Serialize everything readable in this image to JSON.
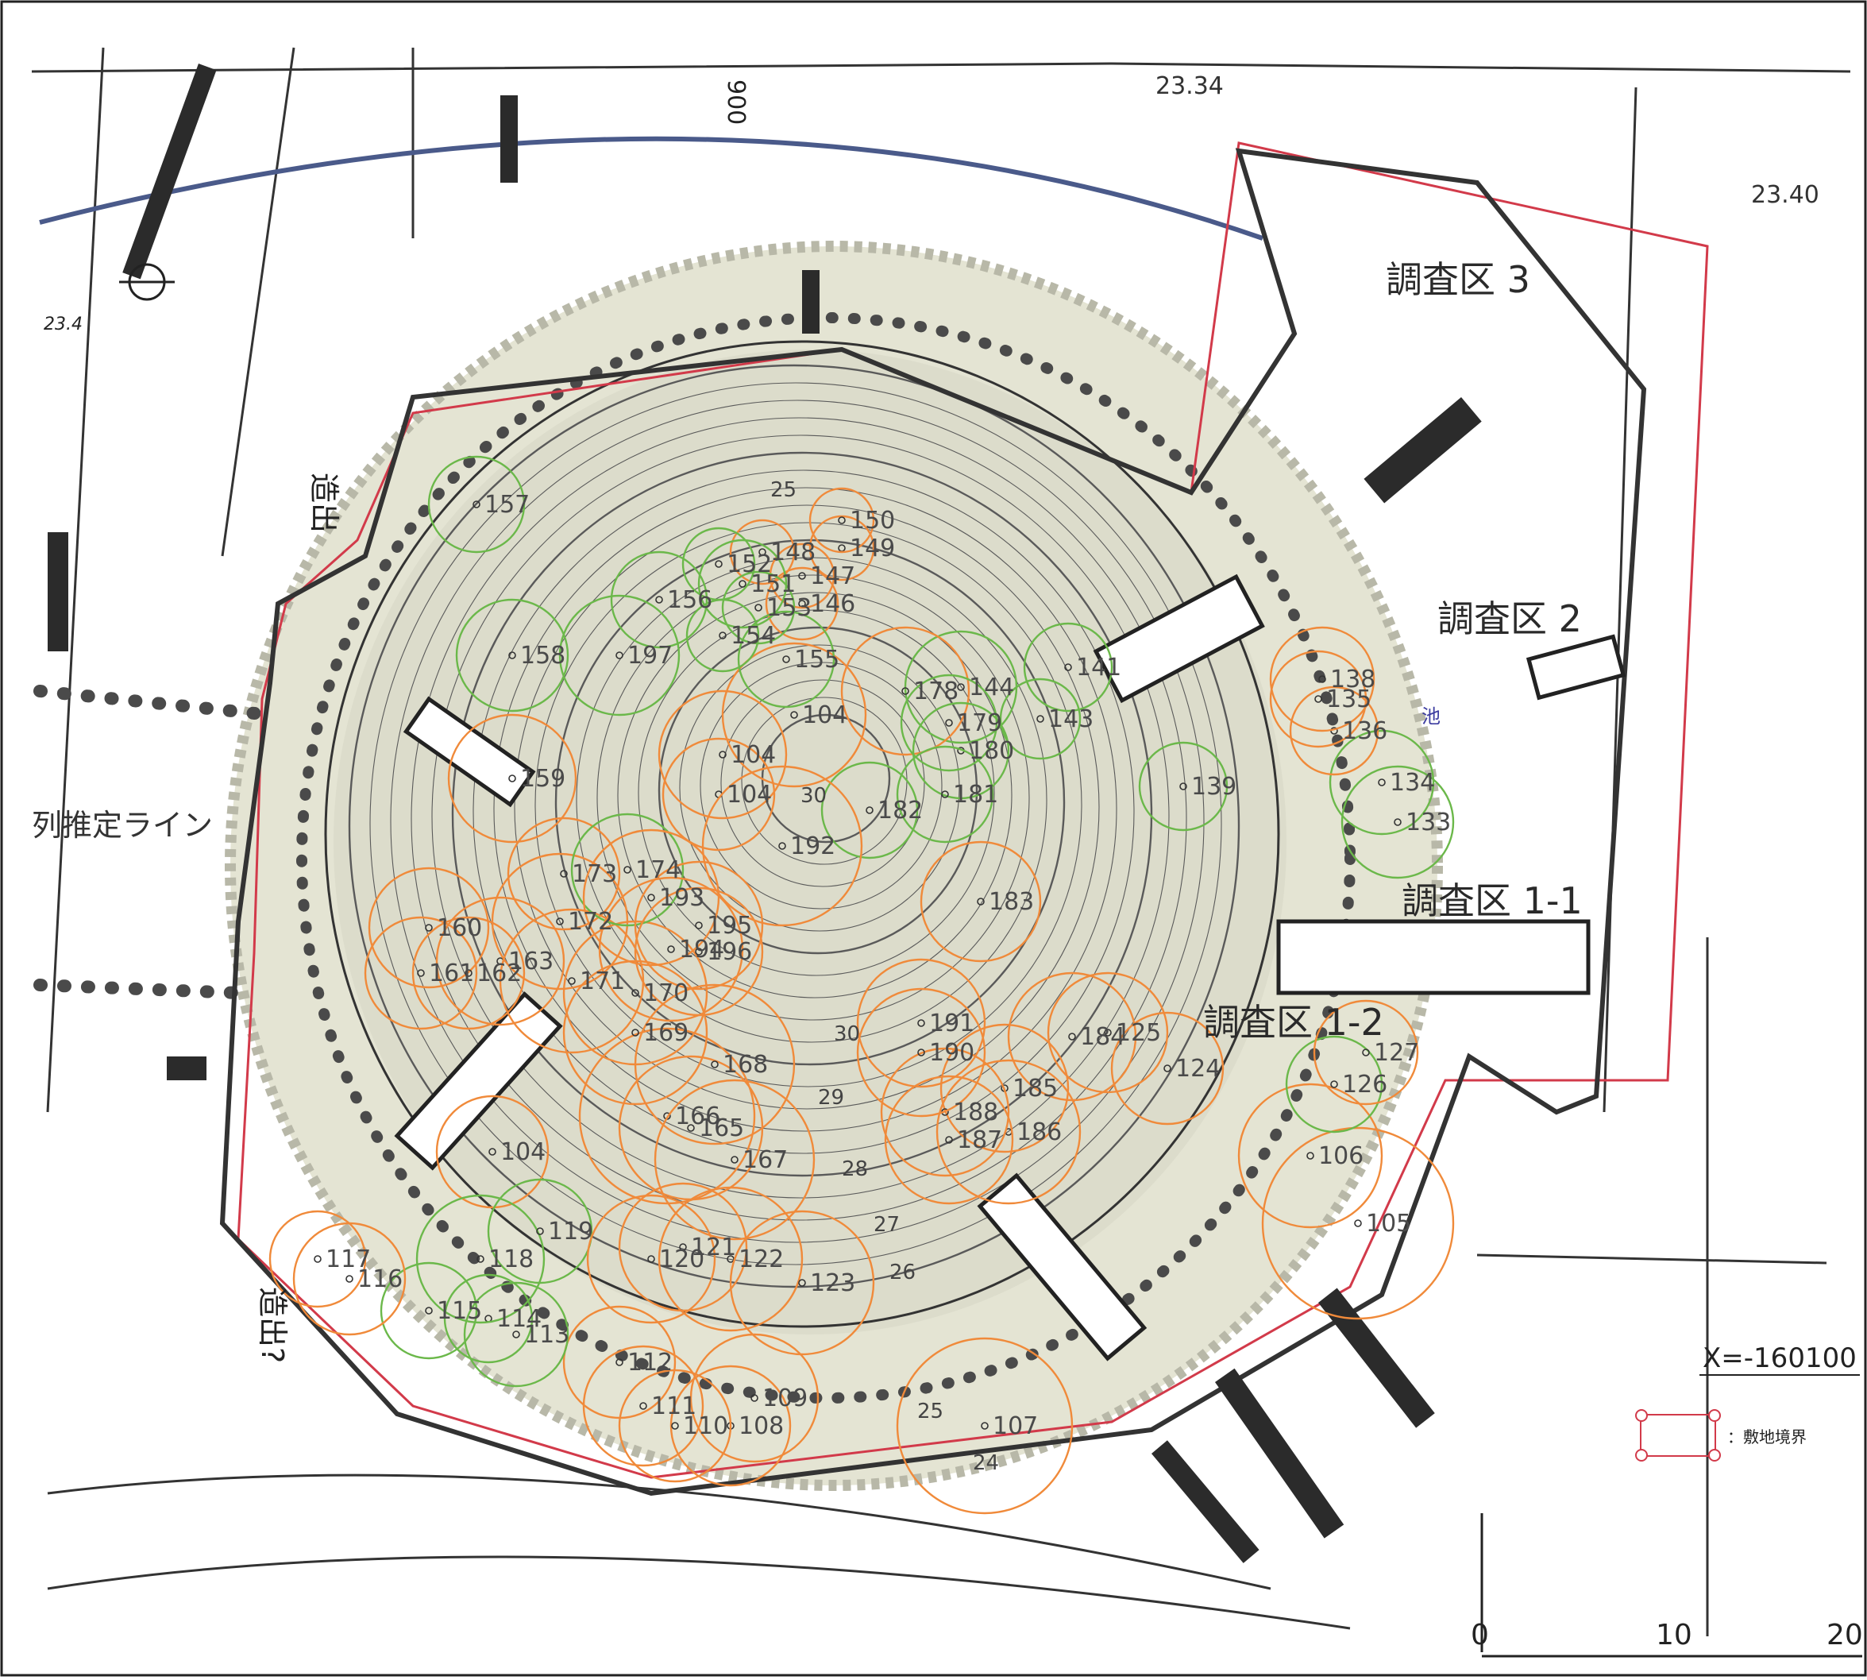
{
  "colors": {
    "background": "#ffffff",
    "mound_fill": "#cfcbb8",
    "buffer_fill": "#e4e4d3",
    "site_boundary": "#d23a4a",
    "survey_circle_orange": "#f08a3a",
    "survey_circle_green": "#6bb84a",
    "contour": "#5a5a5a",
    "road_line": "#4a5a8a"
  },
  "zones": {
    "zone3": "調査区 3",
    "zone2": "調査区 2",
    "zone1_1": "調査区 1-1",
    "zone1_2": "調査区 1-2"
  },
  "side_labels": {
    "left_top": "造出",
    "left_bottom": "造出?",
    "row_line": "列推定ライン",
    "pond": "池"
  },
  "elevations": {
    "top_center": "23.34",
    "top_right": "23.40",
    "top_left": "23.4",
    "road_mark": "900",
    "contours": [
      "30",
      "30",
      "29",
      "28",
      "27",
      "26",
      "25",
      "25",
      "24"
    ]
  },
  "legend": {
    "site_boundary": "：敷地境界"
  },
  "coordinate": {
    "x_line": "X=-160100"
  },
  "scale_bar": {
    "ticks": [
      "0",
      "10",
      "20"
    ]
  },
  "survey_points": [
    {
      "label": "104",
      "cls": "orange"
    },
    {
      "label": "104",
      "cls": "orange"
    },
    {
      "label": "104",
      "cls": "orange"
    },
    {
      "label": "104",
      "cls": "orange"
    },
    {
      "label": "105",
      "cls": "orange"
    },
    {
      "label": "106",
      "cls": "orange"
    },
    {
      "label": "107",
      "cls": "orange"
    },
    {
      "label": "108",
      "cls": "orange"
    },
    {
      "label": "109",
      "cls": "orange"
    },
    {
      "label": "110",
      "cls": "orange"
    },
    {
      "label": "111",
      "cls": "orange"
    },
    {
      "label": "112",
      "cls": "orange"
    },
    {
      "label": "113",
      "cls": "green"
    },
    {
      "label": "114",
      "cls": "green"
    },
    {
      "label": "115",
      "cls": "green"
    },
    {
      "label": "116",
      "cls": "orange"
    },
    {
      "label": "117",
      "cls": "orange"
    },
    {
      "label": "118",
      "cls": "green"
    },
    {
      "label": "119",
      "cls": "green"
    },
    {
      "label": "120",
      "cls": "orange"
    },
    {
      "label": "121",
      "cls": "orange"
    },
    {
      "label": "122",
      "cls": "orange"
    },
    {
      "label": "123",
      "cls": "orange"
    },
    {
      "label": "124",
      "cls": "orange"
    },
    {
      "label": "125",
      "cls": "orange"
    },
    {
      "label": "126",
      "cls": "green"
    },
    {
      "label": "127",
      "cls": "orange"
    },
    {
      "label": "133",
      "cls": "green"
    },
    {
      "label": "134",
      "cls": "green"
    },
    {
      "label": "135",
      "cls": "orange"
    },
    {
      "label": "136",
      "cls": "orange"
    },
    {
      "label": "138",
      "cls": "orange"
    },
    {
      "label": "139",
      "cls": "green"
    },
    {
      "label": "141",
      "cls": "green"
    },
    {
      "label": "143",
      "cls": "green"
    },
    {
      "label": "144",
      "cls": "green"
    },
    {
      "label": "146",
      "cls": "orange"
    },
    {
      "label": "147",
      "cls": "orange"
    },
    {
      "label": "148",
      "cls": "orange"
    },
    {
      "label": "149",
      "cls": "orange"
    },
    {
      "label": "150",
      "cls": "orange"
    },
    {
      "label": "151",
      "cls": "green"
    },
    {
      "label": "152",
      "cls": "green"
    },
    {
      "label": "153",
      "cls": "green"
    },
    {
      "label": "154",
      "cls": "green"
    },
    {
      "label": "155",
      "cls": "green"
    },
    {
      "label": "156",
      "cls": "green"
    },
    {
      "label": "157",
      "cls": "green"
    },
    {
      "label": "158",
      "cls": "green"
    },
    {
      "label": "159",
      "cls": "orange"
    },
    {
      "label": "160",
      "cls": "orange"
    },
    {
      "label": "161",
      "cls": "orange"
    },
    {
      "label": "162",
      "cls": "orange"
    },
    {
      "label": "163",
      "cls": "orange"
    },
    {
      "label": "165",
      "cls": "orange"
    },
    {
      "label": "166",
      "cls": "orange"
    },
    {
      "label": "167",
      "cls": "orange"
    },
    {
      "label": "168",
      "cls": "orange"
    },
    {
      "label": "169",
      "cls": "orange"
    },
    {
      "label": "170",
      "cls": "orange"
    },
    {
      "label": "171",
      "cls": "orange"
    },
    {
      "label": "172",
      "cls": "orange"
    },
    {
      "label": "173",
      "cls": "orange"
    },
    {
      "label": "174",
      "cls": "green"
    },
    {
      "label": "178",
      "cls": "orange"
    },
    {
      "label": "179",
      "cls": "green"
    },
    {
      "label": "180",
      "cls": "green"
    },
    {
      "label": "181",
      "cls": "green"
    },
    {
      "label": "182",
      "cls": "green"
    },
    {
      "label": "183",
      "cls": "orange"
    },
    {
      "label": "184",
      "cls": "orange"
    },
    {
      "label": "185",
      "cls": "orange"
    },
    {
      "label": "186",
      "cls": "orange"
    },
    {
      "label": "187",
      "cls": "orange"
    },
    {
      "label": "188",
      "cls": "orange"
    },
    {
      "label": "190",
      "cls": "orange"
    },
    {
      "label": "191",
      "cls": "orange"
    },
    {
      "label": "192",
      "cls": "orange"
    },
    {
      "label": "193",
      "cls": "orange"
    },
    {
      "label": "194",
      "cls": "orange"
    },
    {
      "label": "195",
      "cls": "orange"
    },
    {
      "label": "196",
      "cls": "orange"
    },
    {
      "label": "197",
      "cls": "green"
    }
  ]
}
